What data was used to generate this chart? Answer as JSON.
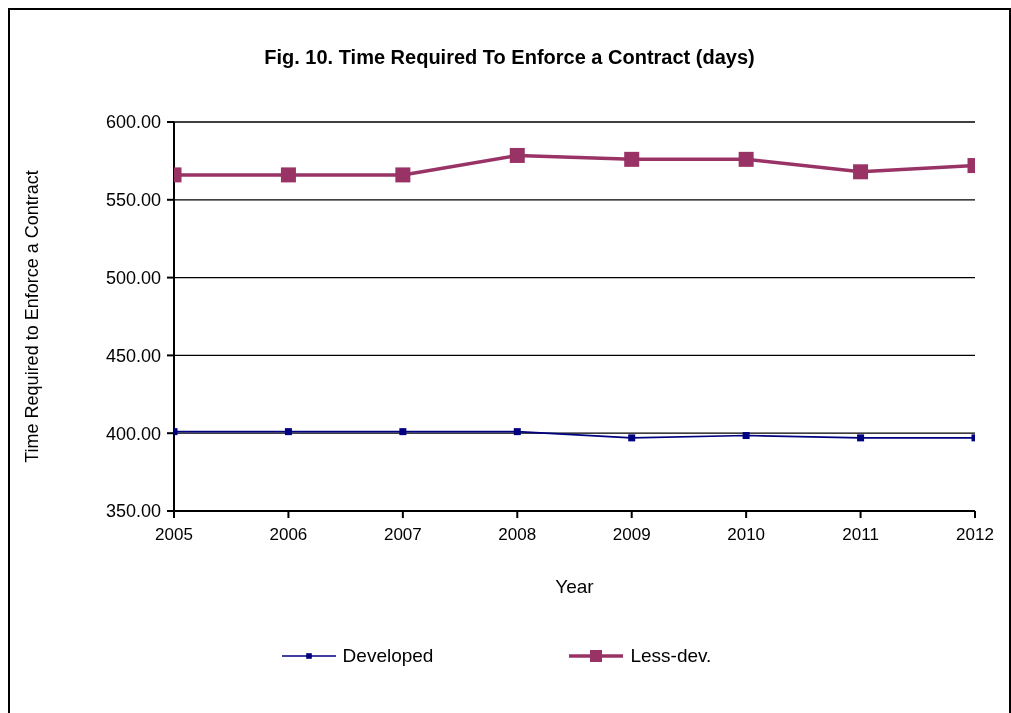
{
  "chart_data": {
    "type": "line",
    "title": "Fig. 10. Time Required To Enforce a Contract (days)",
    "xlabel": "Year",
    "ylabel": "Time Required to Enforce a Contract",
    "categories": [
      "2005",
      "2006",
      "2007",
      "2008",
      "2009",
      "2010",
      "2011",
      "2012"
    ],
    "series": [
      {
        "name": "Developed",
        "color": "#000080",
        "values": [
          401,
          401,
          401,
          401,
          397,
          398.5,
          397,
          397
        ]
      },
      {
        "name": "Less-dev.",
        "color": "#993366",
        "values": [
          566,
          566,
          566,
          578.5,
          576,
          576,
          568,
          572
        ]
      }
    ],
    "ylim": [
      350,
      600
    ],
    "yticks": [
      {
        "value": 350,
        "label": "350.00"
      },
      {
        "value": 400,
        "label": "400.00"
      },
      {
        "value": 450,
        "label": "450.00"
      },
      {
        "value": 500,
        "label": "500.00"
      },
      {
        "value": 550,
        "label": "550.00"
      },
      {
        "value": 600,
        "label": "600.00"
      }
    ],
    "grid": "y",
    "legend": "bottom",
    "marker": "square",
    "line_style": "solid"
  }
}
